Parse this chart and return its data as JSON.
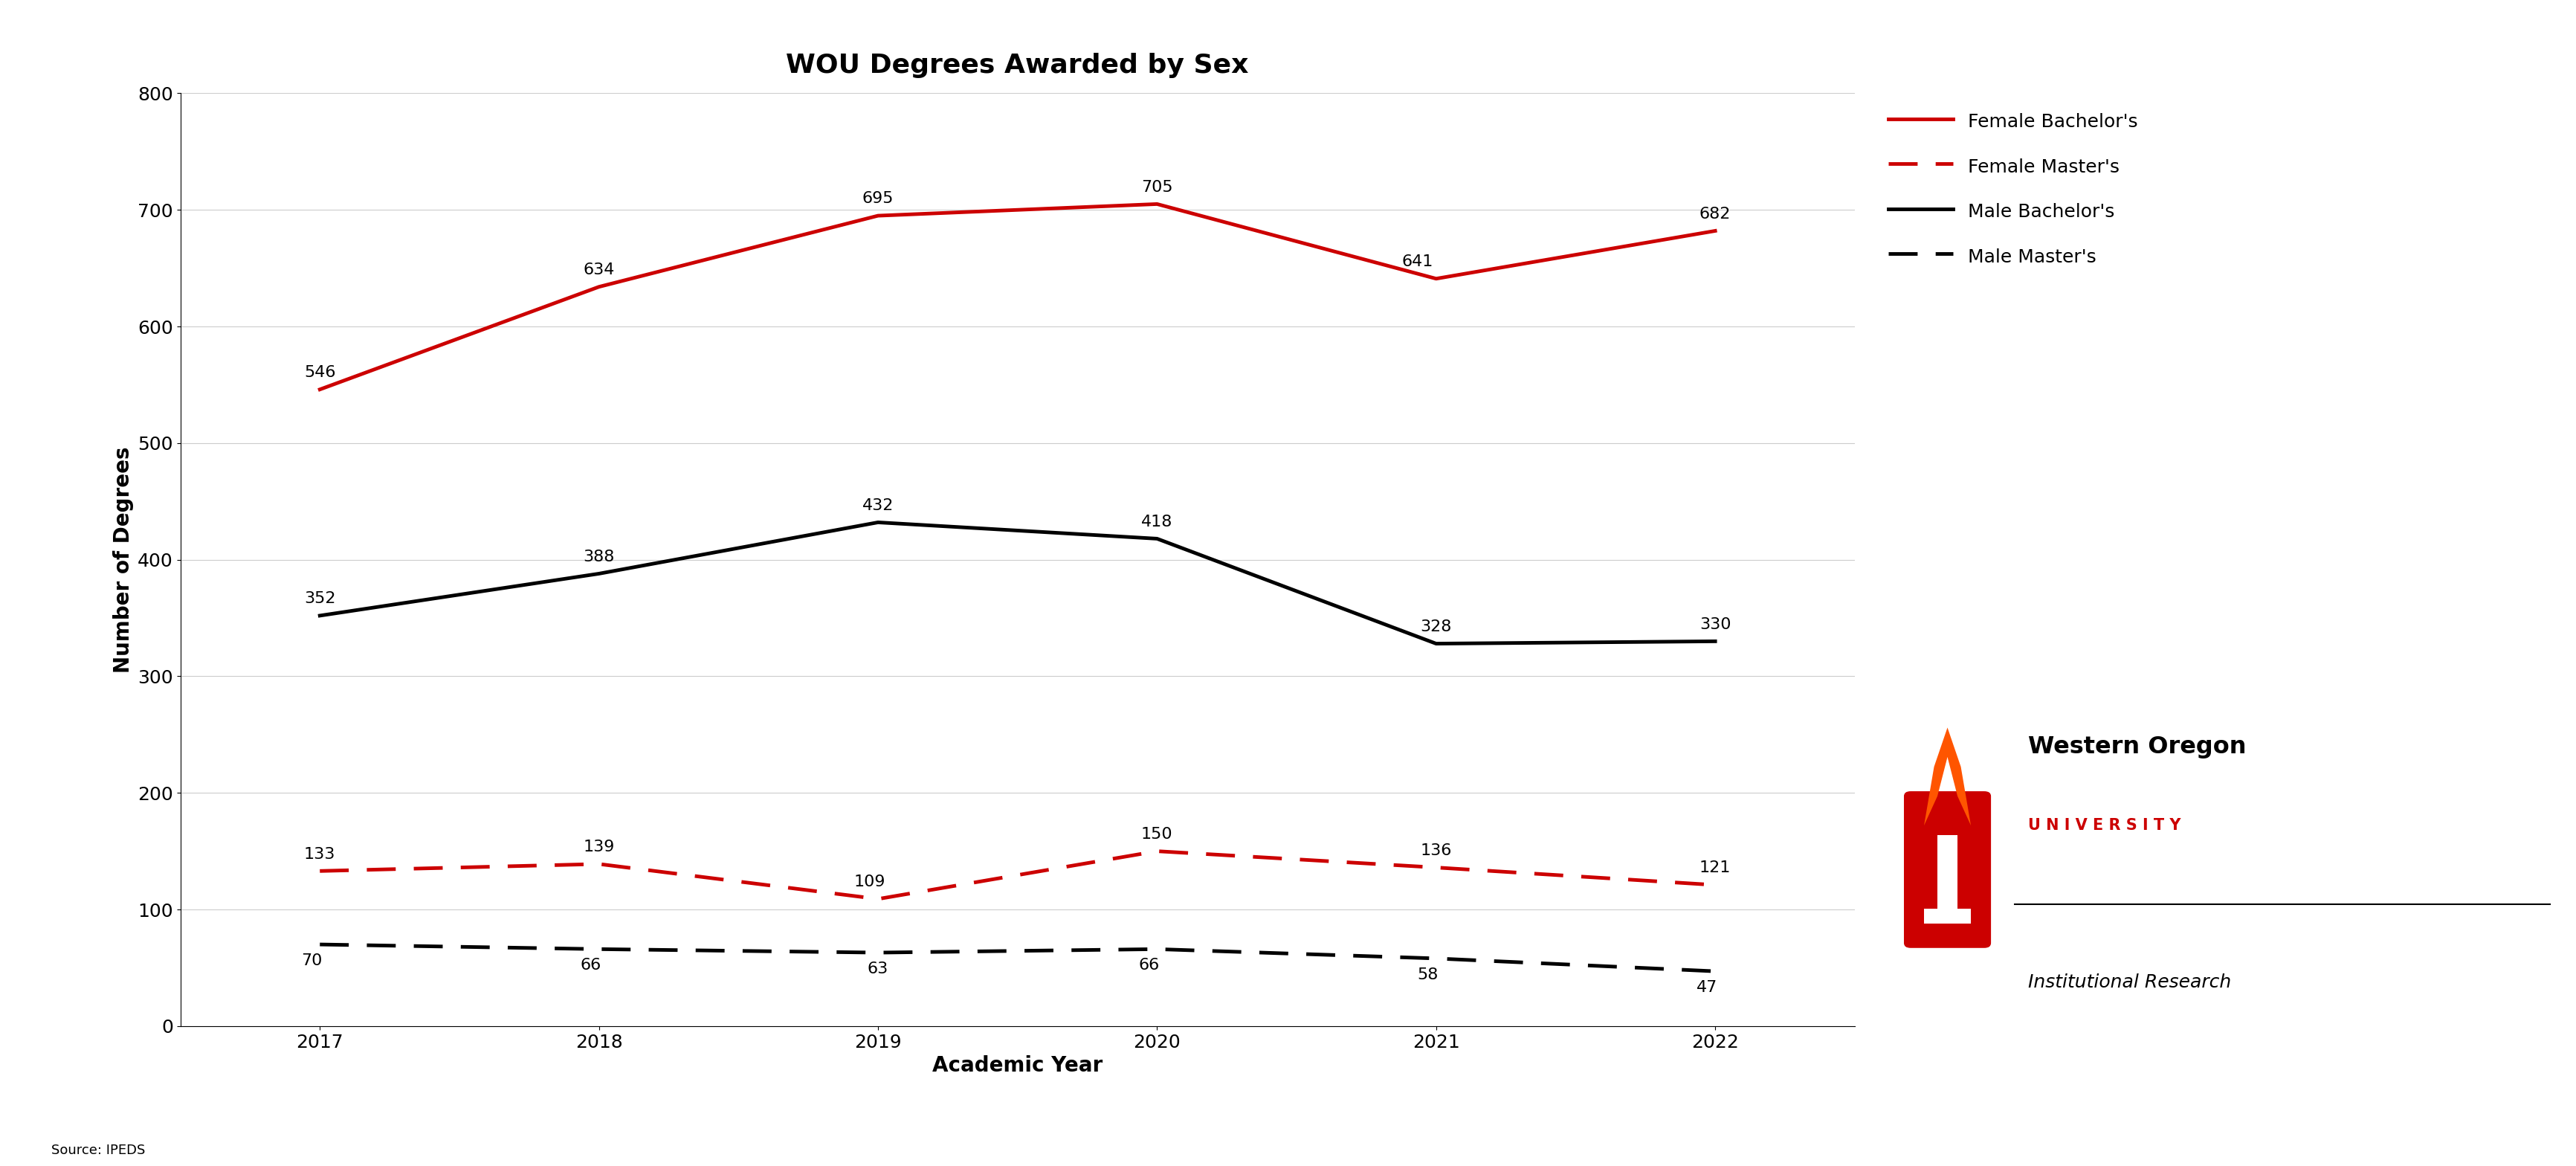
{
  "title": "WOU Degrees Awarded by Sex",
  "xlabel": "Academic Year",
  "ylabel": "Number of Degrees",
  "source": "Source: IPEDS",
  "years": [
    2017,
    2018,
    2019,
    2020,
    2021,
    2022
  ],
  "female_bachelors": [
    546,
    634,
    695,
    705,
    641,
    682
  ],
  "female_masters": [
    133,
    139,
    109,
    150,
    136,
    121
  ],
  "male_bachelors": [
    352,
    388,
    432,
    418,
    328,
    330
  ],
  "male_masters": [
    70,
    66,
    63,
    66,
    58,
    47
  ],
  "female_bachelors_color": "#CC0000",
  "female_masters_color": "#CC0000",
  "male_bachelors_color": "#000000",
  "male_masters_color": "#000000",
  "ylim": [
    0,
    800
  ],
  "yticks": [
    0,
    100,
    200,
    300,
    400,
    500,
    600,
    700,
    800
  ],
  "background_color": "#FFFFFF",
  "legend_labels": [
    "Female Bachelor's",
    "Female Master's",
    "Male Bachelor's",
    "Male Master's"
  ],
  "title_fontsize": 26,
  "label_fontsize": 20,
  "tick_fontsize": 18,
  "annotation_fontsize": 16,
  "legend_fontsize": 18,
  "wou_red": "#CC0000"
}
